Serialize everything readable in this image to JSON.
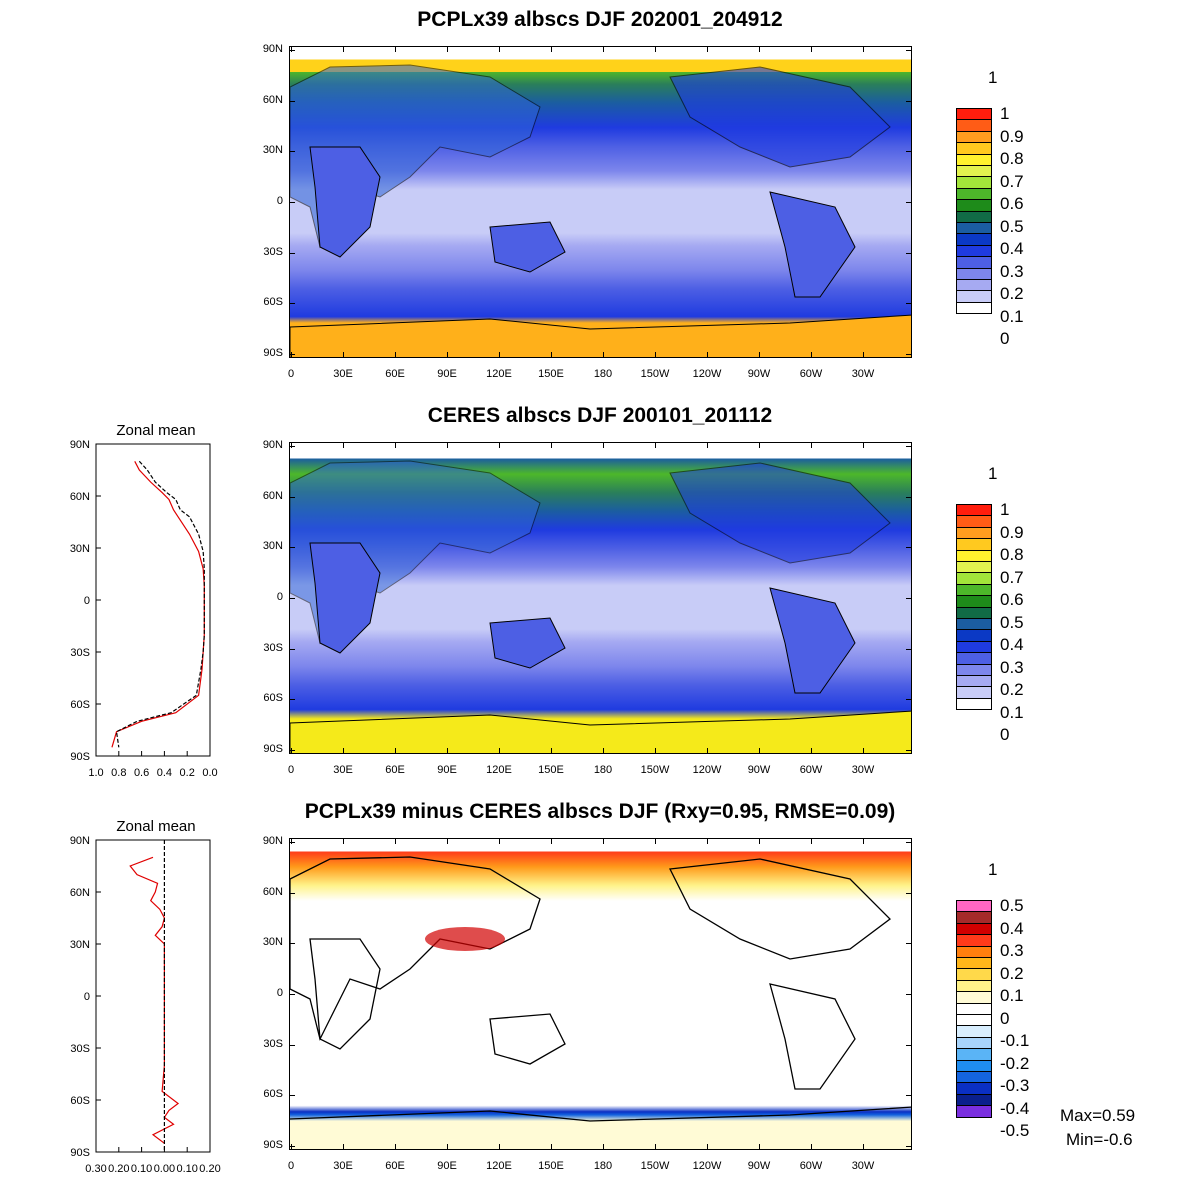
{
  "panels": [
    {
      "id": "model",
      "title": "PCPLx39 albscs DJF 202001_204912",
      "unit": "1"
    },
    {
      "id": "obs",
      "title": "CERES albscs DJF 200101_201112",
      "unit": "1"
    },
    {
      "id": "diff",
      "title": "PCPLx39 minus CERES albscs DJF (Rxy=0.95, RMSE=0.09)",
      "unit": "1"
    }
  ],
  "lat_labels": [
    "90N",
    "60N",
    "30N",
    "0",
    "30S",
    "60S",
    "90S"
  ],
  "lon_labels": [
    "0",
    "30E",
    "60E",
    "90E",
    "120E",
    "150E",
    "180",
    "150W",
    "120W",
    "90W",
    "60W",
    "30W"
  ],
  "colorbar_abs": {
    "labels": [
      "1",
      "0.9",
      "0.8",
      "0.7",
      "0.6",
      "0.5",
      "0.4",
      "0.3",
      "0.2",
      "0.1",
      "0"
    ],
    "colors": [
      "#ff1d0d",
      "#ff5c16",
      "#ff9d1f",
      "#ffc91f",
      "#fff22e",
      "#e2f34f",
      "#a3e53a",
      "#4db72a",
      "#1e8b1a",
      "#116b46",
      "#1b5da1",
      "#0b39c5",
      "#1f3be0",
      "#4d5fe4",
      "#7d86ec",
      "#a6aaf2",
      "#c8ccf7",
      "#ffffff"
    ]
  },
  "colorbar_diff": {
    "labels": [
      "0.5",
      "0.4",
      "0.3",
      "0.2",
      "0.1",
      "0",
      "-0.1",
      "-0.2",
      "-0.3",
      "-0.4",
      "-0.5"
    ],
    "colors": [
      "#ff66c4",
      "#a52a2a",
      "#d10000",
      "#ff3a1a",
      "#ff7f0e",
      "#ffb61a",
      "#ffd94a",
      "#fff38a",
      "#fffbd6",
      "#ffffff",
      "#ffffff",
      "#d8eefe",
      "#a8d4fb",
      "#5ab4f6",
      "#1f8df0",
      "#1464e0",
      "#0a2fc3",
      "#0a1f8c",
      "#7a2fe0"
    ]
  },
  "stats": {
    "max": "Max=0.59",
    "min": "Min=-0.6"
  },
  "zonal": {
    "title": "Zonal mean",
    "lat_labels": [
      "90N",
      "60N",
      "30N",
      "0",
      "30S",
      "60S",
      "90S"
    ],
    "x_labels_abs": [
      "1.0",
      "0.8",
      "0.6",
      "0.4",
      "0.2",
      "0.0"
    ],
    "x_labels_diff": [
      "0.30",
      "0.20",
      "0.10",
      "0.00",
      "0.10",
      "0.20"
    ]
  },
  "chart_data": [
    {
      "type": "line",
      "title": "Zonal mean",
      "xlim": [
        1.0,
        0.0
      ],
      "ylim": [
        -90,
        90
      ],
      "series": [
        {
          "color": "#e00000",
          "x": [
            0.66,
            0.62,
            0.52,
            0.42,
            0.36,
            0.32,
            0.28,
            0.18,
            0.1,
            0.06,
            0.05,
            0.05,
            0.05,
            0.05,
            0.06,
            0.07,
            0.1,
            0.3,
            0.6,
            0.82,
            0.86
          ],
          "y": [
            80,
            75,
            68,
            62,
            58,
            52,
            48,
            38,
            28,
            18,
            8,
            0,
            -10,
            -20,
            -30,
            -40,
            -55,
            -65,
            -70,
            -76,
            -85
          ]
        },
        {
          "color": "#000000",
          "x": [
            0.62,
            0.55,
            0.48,
            0.38,
            0.3,
            0.26,
            0.18,
            0.1,
            0.06,
            0.05,
            0.05,
            0.05,
            0.05,
            0.05,
            0.06,
            0.08,
            0.12,
            0.34,
            0.64,
            0.82,
            0.8
          ],
          "y": [
            80,
            75,
            68,
            62,
            58,
            52,
            48,
            38,
            28,
            18,
            8,
            0,
            -10,
            -20,
            -30,
            -40,
            -55,
            -65,
            -70,
            -76,
            -85
          ]
        }
      ]
    },
    {
      "type": "line",
      "title": "Zonal mean",
      "xlim": [
        -0.3,
        0.2
      ],
      "ylim": [
        -90,
        90
      ],
      "series": [
        {
          "color": "#e00000",
          "x": [
            -0.05,
            -0.15,
            -0.12,
            -0.03,
            -0.04,
            -0.06,
            -0.02,
            0.0,
            -0.01,
            -0.04,
            0.0,
            0.0,
            0.0,
            0.0,
            0.0,
            0.0,
            -0.01,
            0.06,
            0.02,
            0.0,
            0.04,
            -0.05,
            0.0
          ],
          "y": [
            80,
            75,
            70,
            65,
            60,
            55,
            50,
            45,
            40,
            35,
            30,
            0,
            -10,
            -20,
            -30,
            -40,
            -55,
            -62,
            -66,
            -70,
            -74,
            -80,
            -85
          ]
        },
        {
          "color": "#000000",
          "x": [
            0.0,
            0.0
          ],
          "y": [
            90,
            -90
          ]
        }
      ]
    }
  ]
}
